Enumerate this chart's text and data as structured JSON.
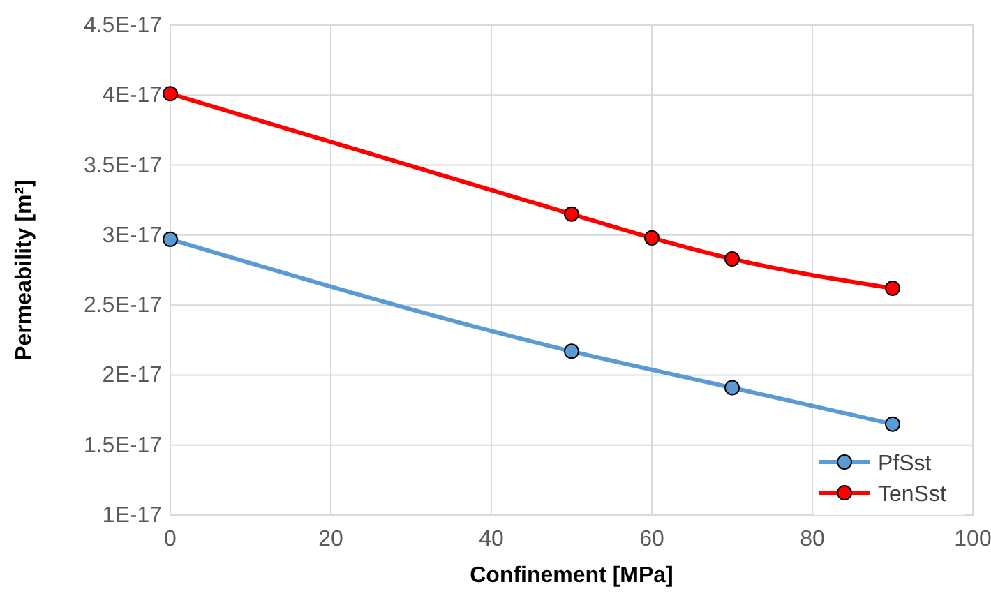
{
  "chart_data": {
    "type": "line",
    "xlabel": "Confinement [MPa]",
    "ylabel": "Permeability [m²]",
    "xlim": [
      0,
      100
    ],
    "xticks": [
      0,
      20,
      40,
      60,
      80,
      100
    ],
    "ylim": [
      1e-17,
      4.5e-17
    ],
    "yticks": [
      {
        "value": 1e-17,
        "label": "1E-17"
      },
      {
        "value": 1.5e-17,
        "label": "1.5E-17"
      },
      {
        "value": 2e-17,
        "label": "2E-17"
      },
      {
        "value": 2.5e-17,
        "label": "2.5E-17"
      },
      {
        "value": 3e-17,
        "label": "3E-17"
      },
      {
        "value": 3.5e-17,
        "label": "3.5E-17"
      },
      {
        "value": 4e-17,
        "label": "4E-17"
      },
      {
        "value": 4.5e-17,
        "label": "4.5E-17"
      }
    ],
    "grid": true,
    "legend": "bottom right",
    "marker": "circle",
    "series": [
      {
        "name": "PfSst",
        "color": "#5b9bd5",
        "x": [
          0,
          50,
          70,
          90
        ],
        "values": [
          2.97e-17,
          2.17e-17,
          1.91e-17,
          1.65e-17
        ]
      },
      {
        "name": "TenSst",
        "color": "#ff0000",
        "x": [
          0,
          50,
          60,
          70,
          90
        ],
        "values": [
          4.01e-17,
          3.15e-17,
          2.98e-17,
          2.83e-17,
          2.62e-17
        ]
      }
    ]
  }
}
